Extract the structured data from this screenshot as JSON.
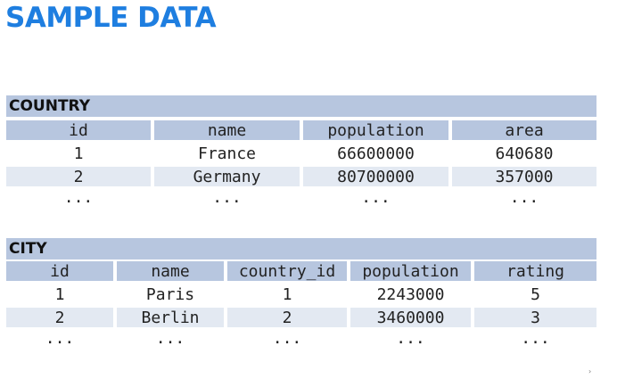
{
  "title": "SAMPLE DATA",
  "country": {
    "name": "COUNTRY",
    "columns": [
      "id",
      "name",
      "population",
      "area"
    ],
    "rows": [
      [
        "1",
        "France",
        "66600000",
        "640680"
      ],
      [
        "2",
        "Germany",
        "80700000",
        "357000"
      ],
      [
        "...",
        "...",
        "...",
        "..."
      ]
    ]
  },
  "city": {
    "name": "CITY",
    "columns": [
      "id",
      "name",
      "country_id",
      "population",
      "rating"
    ],
    "rows": [
      [
        "1",
        "Paris",
        "1",
        "2243000",
        "5"
      ],
      [
        "2",
        "Berlin",
        "2",
        "3460000",
        "3"
      ],
      [
        "...",
        "...",
        "...",
        "...",
        "..."
      ]
    ]
  },
  "colors": {
    "title": "#1e7ee0",
    "header_band": "#b7c6df",
    "shaded_row": "#e3e9f2"
  },
  "corner_mark": "›"
}
